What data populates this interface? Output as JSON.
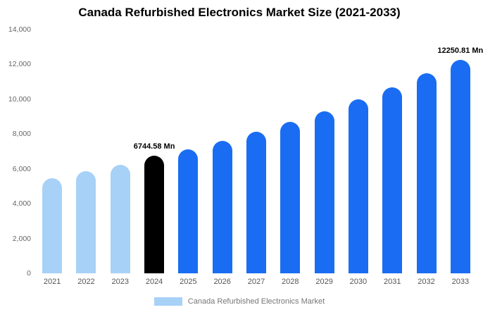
{
  "chart_data": {
    "type": "bar",
    "title": "Canada Refurbished Electronics Market Size (2021-2033)",
    "categories": [
      "2021",
      "2022",
      "2023",
      "2024",
      "2025",
      "2026",
      "2027",
      "2028",
      "2029",
      "2030",
      "2031",
      "2032",
      "2033"
    ],
    "values": [
      5450,
      5850,
      6250,
      6744.58,
      7120,
      7600,
      8150,
      8720,
      9320,
      9980,
      10680,
      11480,
      12250.81
    ],
    "bar_colors": [
      "#a8d1f7",
      "#a8d1f7",
      "#a8d1f7",
      "#000000",
      "#1a6df2",
      "#1a6df2",
      "#1a6df2",
      "#1a6df2",
      "#1a6df2",
      "#1a6df2",
      "#1a6df2",
      "#1a6df2",
      "#1a6df2"
    ],
    "ylim": [
      0,
      14000
    ],
    "ytick_values": [
      0,
      2000,
      4000,
      6000,
      8000,
      10000,
      12000,
      14000
    ],
    "grid": false,
    "annotations": [
      {
        "category": "2024",
        "text": "6744.58 Mn"
      },
      {
        "category": "2033",
        "text": "12250.81 Mn"
      }
    ],
    "legend": {
      "label": "Canada Refurbished Electronics Market",
      "swatch_color": "#a8d1f7",
      "position": "bottom"
    }
  }
}
